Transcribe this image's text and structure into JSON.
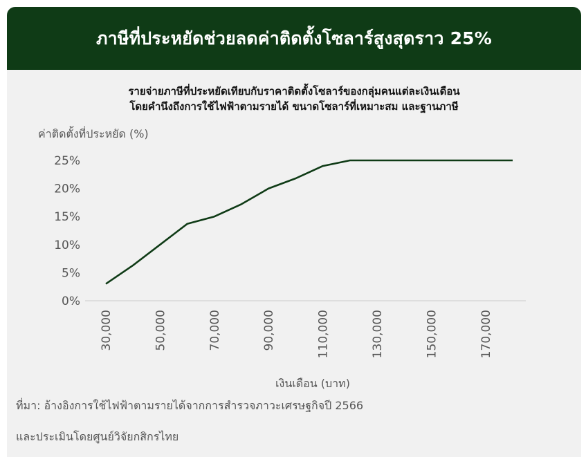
{
  "header": {
    "title": "ภาษีที่ประหยัดช่วยลดค่าติดตั้งโซลาร์สูงสุดราว 25%"
  },
  "subtitle": {
    "line1": "รายจ่ายภาษีที่ประหยัดเทียบกับราคาติดตั้งโซลาร์ของกลุ่มคนแต่ละเงินเดือน",
    "line2": "โดยคำนึงถึงการใช้ไฟฟ้าตามรายได้ ขนาดโซลาร์ที่เหมาะสม และฐานภาษี"
  },
  "colors": {
    "header_bg": "#0f3b16",
    "line": "#0f3b16",
    "panel_bg": "#f1f1f1"
  },
  "chart_data": {
    "type": "line",
    "title": "",
    "ylabel": "ค่าติดตั้งที่ประหยัด (%)",
    "xlabel": "เงินเดือน (บาท)",
    "ylim": [
      0,
      25
    ],
    "xlim": [
      30000,
      180000
    ],
    "y_ticks": [
      "0%",
      "5%",
      "10%",
      "15%",
      "20%",
      "25%"
    ],
    "x_ticks": [
      "30,000",
      "50,000",
      "70,000",
      "90,000",
      "110,000",
      "130,000",
      "150,000",
      "170,000"
    ],
    "grid": false,
    "series": [
      {
        "x": [
          30000,
          40000,
          50000,
          60000,
          70000,
          80000,
          90000,
          100000,
          110000,
          120000,
          130000,
          140000,
          150000,
          160000,
          170000,
          180000
        ],
        "y": [
          3.0,
          6.3,
          10.0,
          13.7,
          15.0,
          17.2,
          20.0,
          21.8,
          24.0,
          25.0,
          25.0,
          25.0,
          25.0,
          25.0,
          25.0,
          25.0
        ]
      }
    ]
  },
  "notes": {
    "source_line1": "ที่มา: อ้างอิงการใช้ไฟฟ้าตามรายได้จากการสำรวจภาวะเศรษฐกิจปี 2566",
    "source_line2": "และประเมินโดยศูนย์วิจัยกสิกรไทย"
  }
}
